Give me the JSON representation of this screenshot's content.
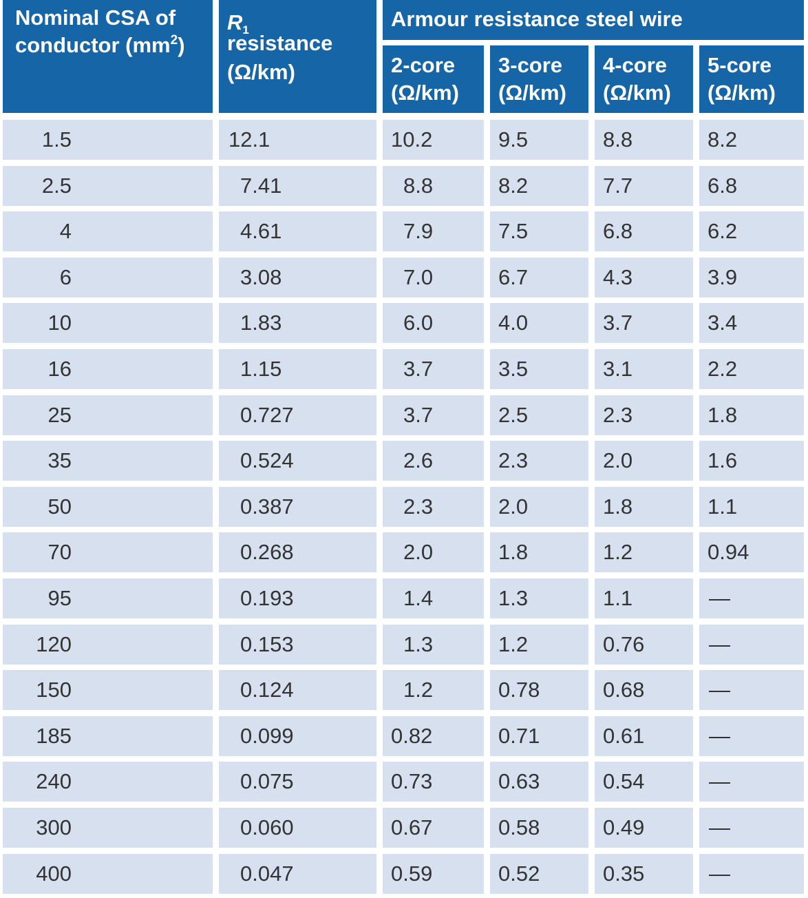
{
  "table": {
    "headers": {
      "csa": {
        "line1": "Nominal CSA of",
        "line2_pre": "conductor (mm",
        "line2_sup": "2",
        "line2_post": ")"
      },
      "r1": {
        "line1_main": "R",
        "line1_sub": "1",
        "line2": "resistance",
        "line3": "(Ω/km)"
      },
      "armour": "Armour resistance steel wire",
      "cores": [
        {
          "line1": "2-core",
          "line2": "(Ω/km)"
        },
        {
          "line1": "3-core",
          "line2": "(Ω/km)"
        },
        {
          "line1": "4-core",
          "line2": "(Ω/km)"
        },
        {
          "line1": "5-core",
          "line2": "(Ω/km)"
        }
      ]
    },
    "rows": [
      [
        "1.5",
        "12.1",
        "10.2",
        "9.5",
        "8.8",
        "8.2"
      ],
      [
        "2.5",
        "7.41",
        "8.8",
        "8.2",
        "7.7",
        "6.8"
      ],
      [
        "4",
        "4.61",
        "7.9",
        "7.5",
        "6.8",
        "6.2"
      ],
      [
        "6",
        "3.08",
        "7.0",
        "6.7",
        "4.3",
        "3.9"
      ],
      [
        "10",
        "1.83",
        "6.0",
        "4.0",
        "3.7",
        "3.4"
      ],
      [
        "16",
        "1.15",
        "3.7",
        "3.5",
        "3.1",
        "2.2"
      ],
      [
        "25",
        "0.727",
        "3.7",
        "2.5",
        "2.3",
        "1.8"
      ],
      [
        "35",
        "0.524",
        "2.6",
        "2.3",
        "2.0",
        "1.6"
      ],
      [
        "50",
        "0.387",
        "2.3",
        "2.0",
        "1.8",
        "1.1"
      ],
      [
        "70",
        "0.268",
        "2.0",
        "1.8",
        "1.2",
        "0.94"
      ],
      [
        "95",
        "0.193",
        "1.4",
        "1.3",
        "1.1",
        "—"
      ],
      [
        "120",
        "0.153",
        "1.3",
        "1.2",
        "0.76",
        "—"
      ],
      [
        "150",
        "0.124",
        "1.2",
        "0.78",
        "0.68",
        "—"
      ],
      [
        "185",
        "0.099",
        "0.82",
        "0.71",
        "0.61",
        "—"
      ],
      [
        "240",
        "0.075",
        "0.73",
        "0.63",
        "0.54",
        "—"
      ],
      [
        "300",
        "0.060",
        "0.67",
        "0.58",
        "0.49",
        "—"
      ],
      [
        "400",
        "0.047",
        "0.59",
        "0.52",
        "0.35",
        "—"
      ]
    ],
    "colors": {
      "header_bg": "#1565a7",
      "row_bg": "#d6e0ef",
      "text": "#333333"
    }
  }
}
